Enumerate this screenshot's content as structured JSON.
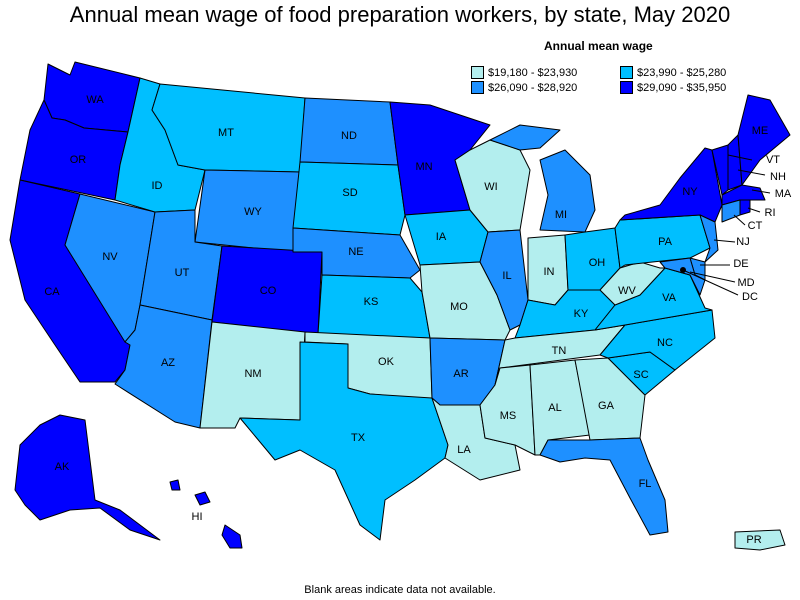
{
  "title": "Annual mean wage of food preparation workers, by state, May 2020",
  "legend": {
    "title": "Annual mean wage",
    "items": [
      {
        "key": "c1",
        "label": "$19,180 - $23,930",
        "color": "#b3eeee"
      },
      {
        "key": "c3",
        "label": "$23,990 - $25,280",
        "color": "#00bfff"
      },
      {
        "key": "c2",
        "label": "$26,090 - $28,920",
        "color": "#1e90ff"
      },
      {
        "key": "c4",
        "label": "$29,090 - $35,950",
        "color": "#0000ff"
      }
    ]
  },
  "footnote": "Blank areas indicate data not available.",
  "states": {
    "WA": "c4",
    "OR": "c4",
    "CA": "c4",
    "AK": "c4",
    "HI": "c4",
    "ID": "c3",
    "MT": "c3",
    "SD": "c3",
    "IA": "c3",
    "KS": "c3",
    "TX": "c3",
    "OH": "c3",
    "PA": "c3",
    "VA": "c3",
    "KY": "c3",
    "NC": "c3",
    "SC": "c3",
    "NV": "c2",
    "UT": "c2",
    "AZ": "c2",
    "WY": "c2",
    "ND": "c2",
    "NE": "c2",
    "AR": "c2",
    "IL": "c2",
    "MI": "c2",
    "FL": "c2",
    "NJ": "c2",
    "DE": "c2",
    "MD": "c2",
    "CT": "c2",
    "CO": "c4",
    "MN": "c4",
    "NY": "c4",
    "VT": "c4",
    "NH": "c4",
    "ME": "c4",
    "MA": "c4",
    "RI": "c4",
    "NM": "c1",
    "OK": "c1",
    "MO": "c1",
    "WI": "c1",
    "IN": "c1",
    "TN": "c1",
    "MS": "c1",
    "AL": "c1",
    "GA": "c1",
    "LA": "c1",
    "WV": "c1",
    "PR": "c1"
  },
  "labels": {
    "WA": "WA",
    "OR": "OR",
    "CA": "CA",
    "NV": "NV",
    "ID": "ID",
    "MT": "MT",
    "WY": "WY",
    "UT": "UT",
    "AZ": "AZ",
    "CO": "CO",
    "NM": "NM",
    "ND": "ND",
    "SD": "SD",
    "NE": "NE",
    "KS": "KS",
    "OK": "OK",
    "TX": "TX",
    "MN": "MN",
    "IA": "IA",
    "MO": "MO",
    "AR": "AR",
    "LA": "LA",
    "WI": "WI",
    "IL": "IL",
    "MI": "MI",
    "IN": "IN",
    "OH": "OH",
    "KY": "KY",
    "TN": "TN",
    "MS": "MS",
    "AL": "AL",
    "GA": "GA",
    "FL": "FL",
    "SC": "SC",
    "NC": "NC",
    "VA": "VA",
    "WV": "WV",
    "PA": "PA",
    "NY": "NY",
    "ME": "ME",
    "VT": "VT",
    "NH": "NH",
    "MA": "MA",
    "RI": "RI",
    "CT": "CT",
    "NJ": "NJ",
    "DE": "DE",
    "MD": "MD",
    "DC": "DC",
    "AK": "AK",
    "HI": "HI",
    "PR": "PR"
  }
}
